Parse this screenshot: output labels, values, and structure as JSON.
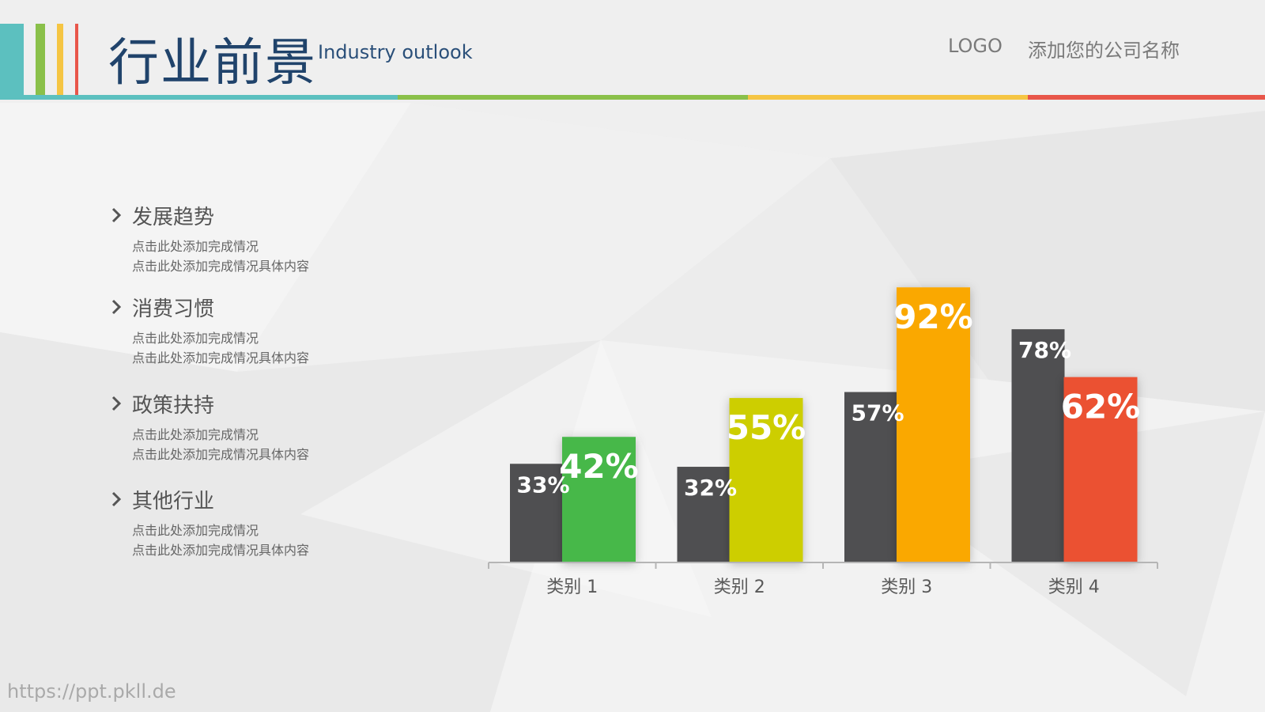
{
  "header": {
    "title": "行业前景",
    "subtitle": "Industry outlook",
    "logo": "LOGO",
    "company": "添加您的公司名称"
  },
  "colors": {
    "teal": "#5cc0bf",
    "green": "#8ac04a",
    "yellow": "#f5c543",
    "red": "#e8564a",
    "title": "#20436b",
    "dark_bar": "#4f4f51"
  },
  "items": [
    {
      "title": "发展趋势",
      "line1": "点击此处添加完成情况",
      "line2": "点击此处添加完成情况具体内容"
    },
    {
      "title": "消费习惯",
      "line1": "点击此处添加完成情况",
      "line2": "点击此处添加完成情况具体内容"
    },
    {
      "title": "政策扶持",
      "line1": "点击此处添加完成情况",
      "line2": "点击此处添加完成情况具体内容"
    },
    {
      "title": "其他行业",
      "line1": "点击此处添加完成情况",
      "line2": "点击此处添加完成情况具体内容"
    }
  ],
  "chart_data": {
    "type": "bar",
    "categories": [
      "类别 1",
      "类别 2",
      "类别 3",
      "类别 4"
    ],
    "ylim": [
      0,
      100
    ],
    "grid": false,
    "series": [
      {
        "values": [
          33,
          32,
          57,
          78
        ],
        "labels": [
          "33%",
          "32%",
          "57%",
          "78%"
        ],
        "colors": [
          "#4f4f51",
          "#4f4f51",
          "#4f4f51",
          "#4f4f51"
        ]
      },
      {
        "values": [
          42,
          55,
          92,
          62
        ],
        "labels": [
          "42%",
          "55%",
          "92%",
          "62%"
        ],
        "colors": [
          "#47b84a",
          "#cdce00",
          "#faa800",
          "#eb5131"
        ]
      }
    ]
  },
  "watermark": "https://ppt.pkll.de"
}
